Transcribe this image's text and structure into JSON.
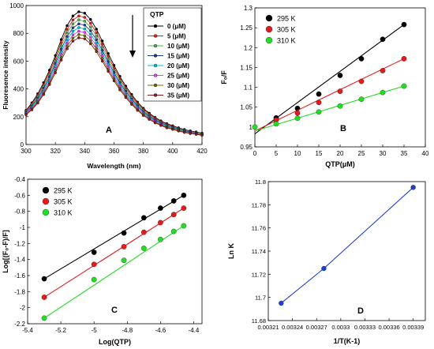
{
  "chart_data": [
    {
      "id": "A",
      "type": "line",
      "panel_label": "A",
      "xlabel": "Wavelength (nm)",
      "ylabel": "Fluoresence intensity",
      "xlim": [
        300,
        420
      ],
      "ylim": [
        0,
        1000
      ],
      "x_ticks": [
        "300",
        "320",
        "340",
        "360",
        "380",
        "400",
        "420"
      ],
      "y_ticks": [
        "0",
        "200",
        "400",
        "600",
        "800",
        "1000"
      ],
      "legend_title": "QTP",
      "legend_position": "top-right",
      "annotation": "downward arrow indicating decreasing intensity with increasing QTP",
      "x": [
        300,
        304,
        308,
        312,
        316,
        320,
        324,
        328,
        332,
        336,
        340,
        344,
        348,
        352,
        356,
        360,
        364,
        368,
        372,
        376,
        380,
        384,
        388,
        392,
        396,
        400,
        404,
        408,
        412,
        416,
        420
      ],
      "series": [
        {
          "name": "0 (μM)",
          "color": "#000000",
          "values": [
            245,
            300,
            365,
            445,
            535,
            640,
            755,
            855,
            925,
            955,
            945,
            900,
            830,
            745,
            655,
            570,
            490,
            420,
            360,
            305,
            260,
            225,
            195,
            170,
            150,
            135,
            120,
            108,
            98,
            90,
            82
          ]
        },
        {
          "name": "5 (μM)",
          "color": "#e41a1c",
          "values": [
            240,
            292,
            354,
            431,
            518,
            620,
            731,
            828,
            896,
            925,
            915,
            872,
            804,
            722,
            634,
            552,
            475,
            407,
            349,
            296,
            252,
            218,
            189,
            165,
            145,
            131,
            116,
            105,
            95,
            87,
            79
          ]
        },
        {
          "name": "10 (μM)",
          "color": "#4daf4a",
          "values": [
            235,
            284,
            344,
            418,
            502,
            601,
            709,
            803,
            868,
            897,
            887,
            845,
            779,
            700,
            615,
            535,
            460,
            394,
            338,
            287,
            244,
            211,
            183,
            160,
            141,
            127,
            113,
            101,
            92,
            85,
            77
          ]
        },
        {
          "name": "15 (μM)",
          "color": "#1f3a93",
          "values": [
            230,
            276,
            333,
            405,
            486,
            582,
            686,
            777,
            840,
            868,
            859,
            818,
            754,
            678,
            595,
            518,
            445,
            382,
            327,
            278,
            236,
            204,
            177,
            155,
            136,
            123,
            109,
            98,
            89,
            82,
            74
          ]
        },
        {
          "name": "20 (μM)",
          "color": "#00bcd4",
          "values": [
            226,
            269,
            323,
            392,
            471,
            564,
            665,
            753,
            814,
            841,
            832,
            793,
            731,
            657,
            577,
            502,
            431,
            370,
            317,
            269,
            229,
            198,
            171,
            150,
            132,
            119,
            106,
            95,
            86,
            79,
            72
          ]
        },
        {
          "name": "25 (μM)",
          "color": "#e040fb",
          "values": [
            222,
            262,
            314,
            381,
            457,
            547,
            645,
            730,
            789,
            815,
            807,
            769,
            709,
            637,
            559,
            487,
            418,
            359,
            307,
            261,
            222,
            192,
            166,
            145,
            128,
            115,
            103,
            92,
            84,
            77,
            70
          ]
        },
        {
          "name": "30 (μM)",
          "color": "#6b6b00",
          "values": [
            218,
            256,
            306,
            370,
            444,
            531,
            626,
            709,
            766,
            791,
            783,
            746,
            688,
            618,
            542,
            472,
            405,
            348,
            298,
            253,
            215,
            186,
            161,
            141,
            124,
            112,
            100,
            89,
            81,
            75,
            68
          ]
        },
        {
          "name": "35 (μM)",
          "color": "#8b1a1a",
          "values": [
            214,
            250,
            298,
            360,
            432,
            516,
            608,
            689,
            744,
            768,
            761,
            725,
            668,
            600,
            527,
            458,
            393,
            338,
            289,
            246,
            209,
            181,
            156,
            137,
            120,
            109,
            97,
            87,
            79,
            73,
            66
          ]
        }
      ]
    },
    {
      "id": "B",
      "type": "scatter",
      "panel_label": "B",
      "xlabel": "QTP(μM)",
      "ylabel": "F₀/F",
      "xlim": [
        0,
        40
      ],
      "ylim": [
        0.95,
        1.3
      ],
      "x_ticks": [
        "0",
        "5",
        "10",
        "15",
        "20",
        "25",
        "30",
        "35",
        "40"
      ],
      "y_ticks": [
        "0.95",
        "1",
        "1.05",
        "1.1",
        "1.15",
        "1.2",
        "1.25",
        "1.3"
      ],
      "legend_position": "top-left",
      "series": [
        {
          "name": "295 K",
          "color": "#000000",
          "x": [
            5,
            10,
            15,
            20,
            25,
            30,
            35
          ],
          "values": [
            1.023,
            1.047,
            1.083,
            1.13,
            1.172,
            1.221,
            1.258
          ],
          "fit": [
            [
              0,
              0.983
            ],
            [
              35,
              1.258
            ]
          ]
        },
        {
          "name": "305 K",
          "color": "#e41a1c",
          "x": [
            5,
            10,
            15,
            20,
            25,
            30,
            35
          ],
          "values": [
            1.018,
            1.035,
            1.062,
            1.09,
            1.115,
            1.142,
            1.172
          ],
          "fit": [
            [
              0,
              0.99
            ],
            [
              35,
              1.172
            ]
          ]
        },
        {
          "name": "310 K",
          "color": "#22dd22",
          "x": [
            0,
            5,
            10,
            15,
            20,
            25,
            30,
            35
          ],
          "values": [
            1.0,
            1.008,
            1.022,
            1.038,
            1.053,
            1.07,
            1.087,
            1.103
          ],
          "fit": [
            [
              0,
              0.99
            ],
            [
              35,
              1.103
            ]
          ]
        }
      ]
    },
    {
      "id": "C",
      "type": "scatter",
      "panel_label": "C",
      "xlabel": "Log(QTP)",
      "ylabel": "Log[(F₀-F)/F]",
      "xlim": [
        -5.4,
        -4.35
      ],
      "ylim": [
        -2.2,
        -0.4
      ],
      "x_ticks": [
        "-5.4",
        "-5.2",
        "-5",
        "-4.8",
        "-4.6",
        "-4.4"
      ],
      "x_tick_values": [
        -5.4,
        -5.2,
        -5,
        -4.8,
        -4.6,
        -4.4
      ],
      "y_ticks": [
        "-2.2",
        "-2",
        "-1.8",
        "-1.6",
        "-1.4",
        "-1.2",
        "-1",
        "-0.8",
        "-0.6",
        "-0.4"
      ],
      "legend_position": "top-left",
      "series": [
        {
          "name": "295 K",
          "color": "#000000",
          "x": [
            -5.3,
            -5.0,
            -4.82,
            -4.7,
            -4.6,
            -4.52,
            -4.46
          ],
          "values": [
            -1.64,
            -1.31,
            -1.07,
            -0.88,
            -0.76,
            -0.67,
            -0.6
          ],
          "fit": [
            [
              -5.3,
              -1.64
            ],
            [
              -4.46,
              -0.6
            ]
          ]
        },
        {
          "name": "305 K",
          "color": "#e41a1c",
          "x": [
            -5.3,
            -5.0,
            -4.82,
            -4.7,
            -4.6,
            -4.52,
            -4.46
          ],
          "values": [
            -1.87,
            -1.46,
            -1.24,
            -1.06,
            -0.94,
            -0.84,
            -0.76
          ],
          "fit": [
            [
              -5.3,
              -1.87
            ],
            [
              -4.46,
              -0.76
            ]
          ]
        },
        {
          "name": "310 K",
          "color": "#22dd22",
          "x": [
            -5.3,
            -5.0,
            -4.82,
            -4.7,
            -4.6,
            -4.52,
            -4.46
          ],
          "values": [
            -2.13,
            -1.65,
            -1.41,
            -1.26,
            -1.15,
            -1.05,
            -0.98
          ],
          "fit": [
            [
              -5.3,
              -2.13
            ],
            [
              -4.46,
              -0.98
            ]
          ]
        }
      ]
    },
    {
      "id": "D",
      "type": "line",
      "panel_label": "D",
      "xlabel": "1/T(K-1)",
      "ylabel": "Ln K",
      "xlim": [
        0.00321,
        0.003405
      ],
      "ylim": [
        11.68,
        11.8
      ],
      "x_ticks": [
        "0.00321",
        "0.00324",
        "0.00327",
        "0.0033",
        "0.00333",
        "0.00336",
        "0.00339"
      ],
      "x_tick_values": [
        0.00321,
        0.00324,
        0.00327,
        0.0033,
        0.00333,
        0.00336,
        0.00339
      ],
      "y_ticks": [
        "11.68",
        "11.7",
        "11.72",
        "11.74",
        "11.76",
        "11.78",
        "11.8"
      ],
      "series": [
        {
          "color": "#1f3fcf",
          "x": [
            0.003226,
            0.003279,
            0.00339
          ],
          "values": [
            11.695,
            11.725,
            11.795
          ]
        }
      ]
    }
  ]
}
